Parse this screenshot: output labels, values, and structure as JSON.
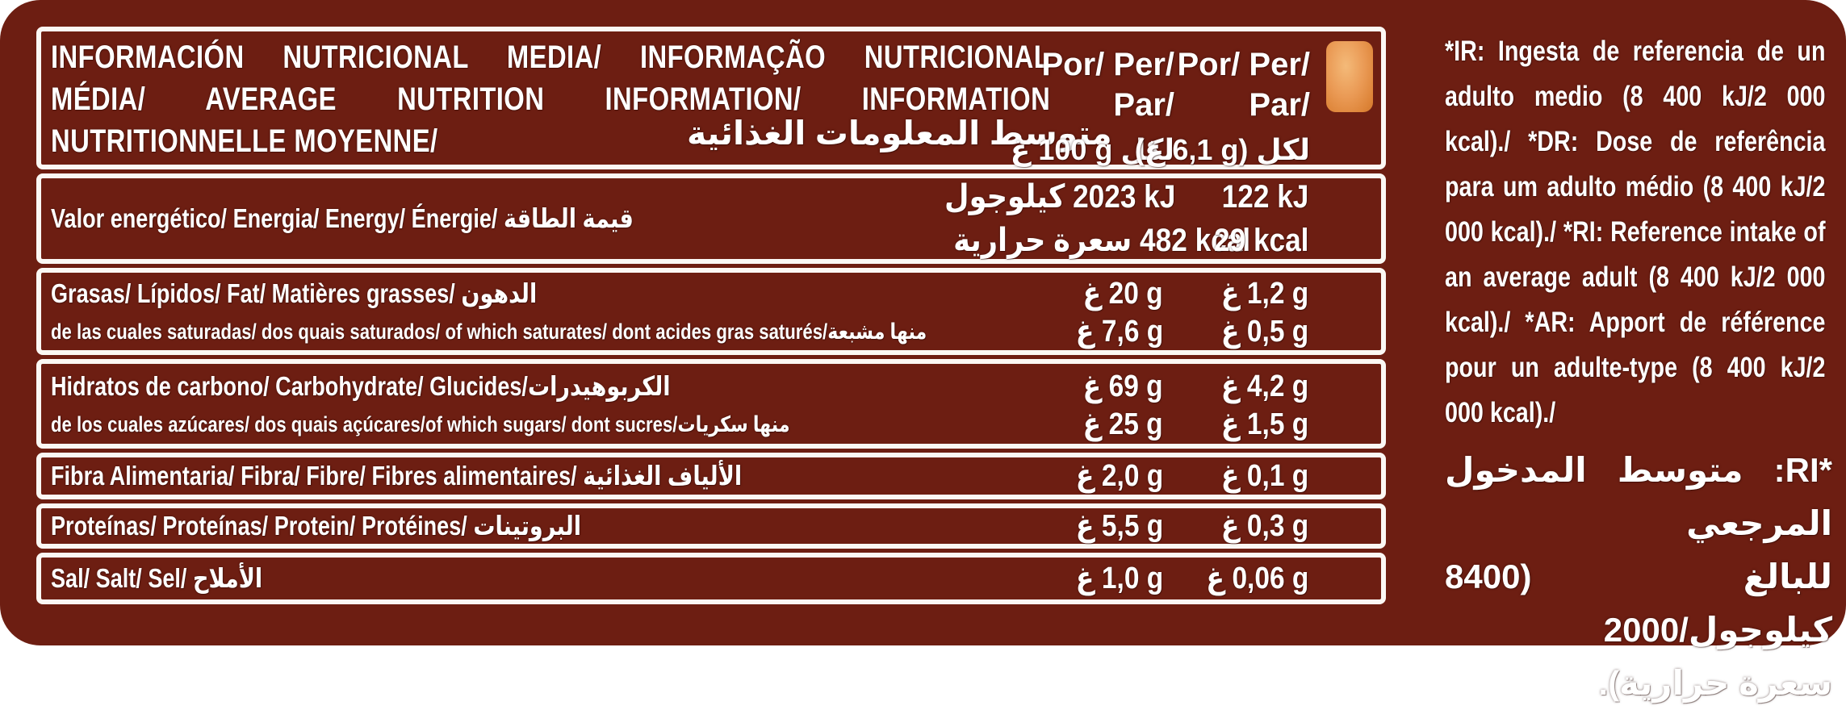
{
  "colors": {
    "background_maroon": "#6D1E12",
    "border_white": "#FBF8F4",
    "text_white": "#FFFFFF",
    "biscuit_orange": "#E59049"
  },
  "units": {
    "gram_ar": "غ"
  },
  "table": {
    "header": {
      "title_line1": "INFORMACIÓN NUTRICIONAL MEDIA/ INFORMAÇÃO NUTRICIONAL",
      "title_line2": "MÉDIA/ AVERAGE NUTRITION INFORMATION/ INFORMATION",
      "title_line3": "NUTRITIONNELLE MOYENNE/",
      "title_arabic": "متوسط المعلومات الغذائية",
      "col_per100": {
        "line1": "Por/ Per/",
        "line2": "Par/",
        "ar_prefix": "لكل",
        "amount": "100 g",
        "ar_unit": "غ"
      },
      "col_portion": {
        "line1": "Por/ Per/",
        "line2": "Par/",
        "ar_prefix": "لكل (",
        "amount": "6,1 g",
        "ar_unit": "غ)"
      }
    },
    "rows": {
      "energy": {
        "label": "Valor energético/ Energia/ Energy/ Énergie/ قيمة الطاقة",
        "per100_kj": "2023 kJ",
        "per100_kj_ar": "كيلوجول",
        "per100_kcal": "482 kcal",
        "per100_kcal_ar": "سعرة حرارية",
        "portion_kj": "122 kJ",
        "portion_kcal": "29 kcal"
      },
      "fat": {
        "label": "Grasas/ Lípidos/ Fat/ Matières grasses/ الدهون",
        "sublabel": "de las cuales saturadas/ dos quais saturados/ of which saturates/ dont acides gras saturés/منها مشبعة",
        "per100": "20 g",
        "portion": "1,2 g",
        "sub_per100": "7,6 g",
        "sub_portion": "0,5 g"
      },
      "carbohydrate": {
        "label": "Hidratos de carbono/ Carbohydrate/ Glucides/الكربوهيدرات",
        "sublabel": "de los cuales azúcares/ dos quais açúcares/of which sugars/ dont sucres/منها سكريات",
        "per100": "69 g",
        "portion": "4,2 g",
        "sub_per100": "25 g",
        "sub_portion": "1,5 g"
      },
      "fibre": {
        "label": "Fibra Alimentaria/ Fibra/ Fibre/ Fibres alimentaires/ الألياف الغذائية",
        "per100": "2,0 g",
        "portion": "0,1 g"
      },
      "protein": {
        "label": "Proteínas/ Proteínas/ Protein/ Protéines/ البروتينات",
        "per100": "5,5 g",
        "portion": "0,3 g"
      },
      "salt": {
        "label": "Sal/ Salt/ Sel/ الأملاح",
        "per100": "1,0 g",
        "portion": "0,06 g"
      }
    }
  },
  "footnote": {
    "latin": "*IR: Ingesta de referencia de un adulto medio (8 400 kJ/2 000 kcal)./ *DR: Dose de referência para um adulto médio (8 400 kJ/2 000 kcal)./ *RI: Reference intake of an average adult (8 400 kJ/2 000 kcal)./ *AR: Apport de référence pour un adulte-type (8 400 kJ/2 000 kcal)./",
    "arabic_line1": "*RI: متوسط المدخول المرجعي",
    "arabic_line2": "للبالغ (8400 كيلوجول/2000",
    "arabic_line3": "سعرة حرارية)."
  }
}
